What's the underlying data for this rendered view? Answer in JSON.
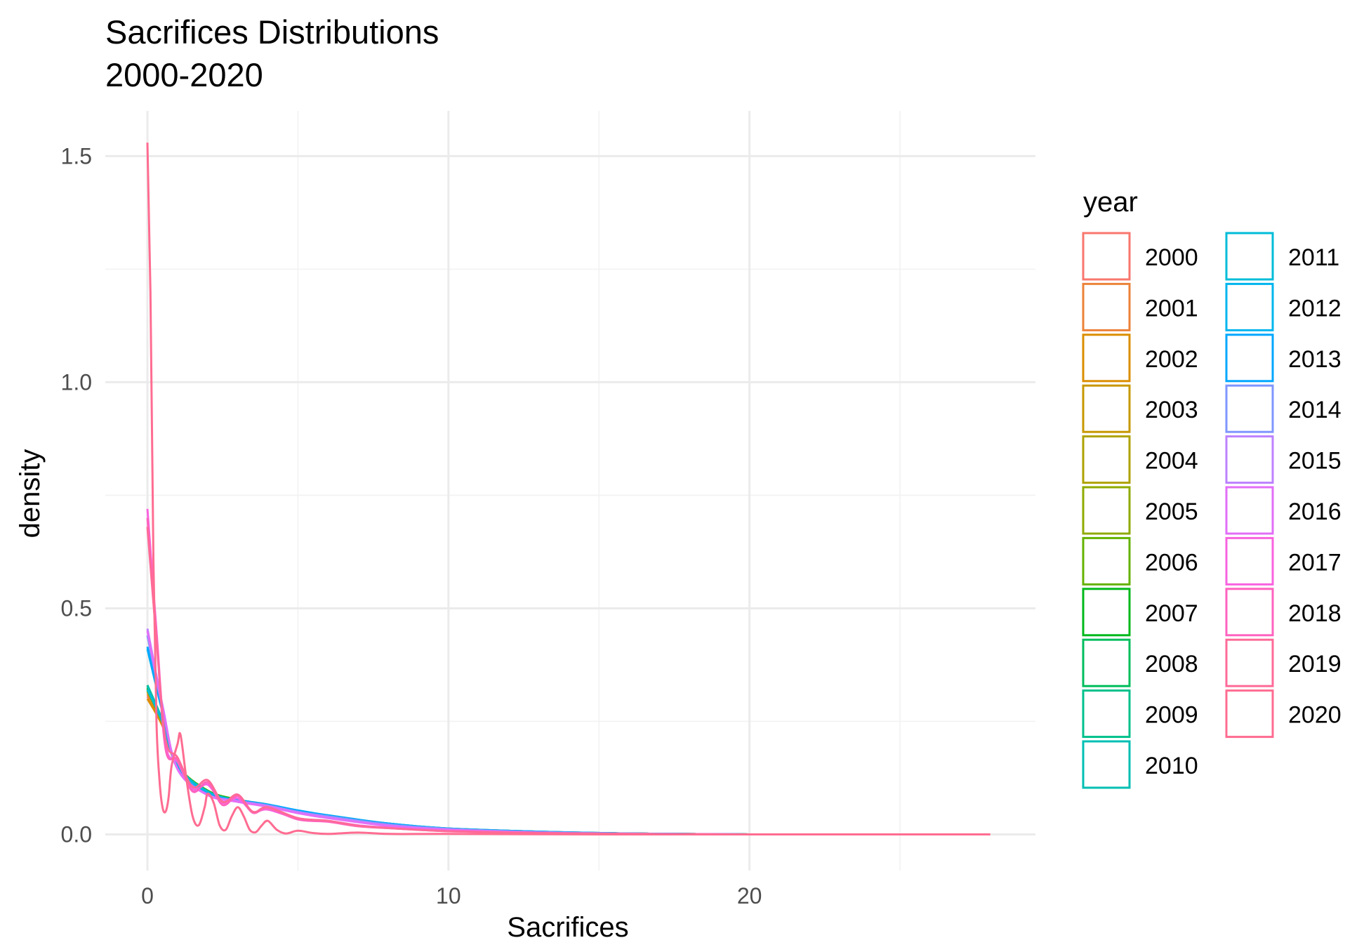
{
  "chart_data": {
    "type": "line",
    "title": "Sacrifices Distributions",
    "subtitle": "2000-2020",
    "xlabel": "Sacrifices",
    "ylabel": "density",
    "xlim": [
      -1.4,
      29.5
    ],
    "ylim": [
      -0.08,
      1.6
    ],
    "x_ticks": [
      0,
      10,
      20
    ],
    "y_ticks": [
      0.0,
      0.5,
      1.0,
      1.5
    ],
    "x_tick_labels": [
      "0",
      "10",
      "20"
    ],
    "y_tick_labels": [
      "0.0",
      "0.5",
      "1.0",
      "1.5"
    ],
    "grid": true,
    "legend": {
      "title": "year",
      "position": "right",
      "columns": 2
    },
    "series": [
      {
        "name": "2000",
        "color": "#F8766D",
        "x": [
          0,
          0.5,
          1,
          2,
          3,
          4,
          5,
          6,
          8,
          10,
          13,
          16,
          20
        ],
        "y": [
          0.305,
          0.24,
          0.15,
          0.095,
          0.075,
          0.065,
          0.05,
          0.04,
          0.022,
          0.012,
          0.005,
          0.002,
          0
        ]
      },
      {
        "name": "2001",
        "color": "#EC8239",
        "x": [
          0,
          0.5,
          1,
          2,
          3,
          4,
          5,
          6,
          8,
          10,
          13,
          16,
          20
        ],
        "y": [
          0.31,
          0.245,
          0.15,
          0.095,
          0.075,
          0.064,
          0.05,
          0.04,
          0.022,
          0.012,
          0.005,
          0.002,
          0
        ]
      },
      {
        "name": "2002",
        "color": "#DB8E00",
        "x": [
          0,
          0.5,
          1,
          2,
          3,
          4,
          5,
          6,
          8,
          10,
          13,
          16,
          20
        ],
        "y": [
          0.3,
          0.24,
          0.15,
          0.095,
          0.076,
          0.065,
          0.051,
          0.041,
          0.023,
          0.013,
          0.006,
          0.002,
          0
        ]
      },
      {
        "name": "2003",
        "color": "#C79800",
        "x": [
          0,
          0.5,
          1,
          2,
          3,
          4,
          5,
          6,
          8,
          10,
          13,
          16,
          20
        ],
        "y": [
          0.315,
          0.245,
          0.152,
          0.095,
          0.075,
          0.064,
          0.05,
          0.04,
          0.022,
          0.012,
          0.005,
          0.002,
          0
        ]
      },
      {
        "name": "2004",
        "color": "#AEA200",
        "x": [
          0,
          0.5,
          1,
          2,
          3,
          4,
          5,
          6,
          8,
          10,
          13,
          16,
          20
        ],
        "y": [
          0.32,
          0.248,
          0.152,
          0.096,
          0.076,
          0.065,
          0.051,
          0.041,
          0.023,
          0.012,
          0.005,
          0.002,
          0
        ]
      },
      {
        "name": "2005",
        "color": "#8FAA00",
        "x": [
          0,
          0.5,
          1,
          2,
          3,
          4,
          5,
          6,
          8,
          10,
          13,
          16,
          20
        ],
        "y": [
          0.318,
          0.246,
          0.151,
          0.095,
          0.075,
          0.064,
          0.05,
          0.04,
          0.022,
          0.012,
          0.005,
          0.002,
          0
        ]
      },
      {
        "name": "2006",
        "color": "#64B200",
        "x": [
          0,
          0.5,
          1,
          2,
          3,
          4,
          5,
          6,
          8,
          10,
          13,
          16,
          20
        ],
        "y": [
          0.322,
          0.25,
          0.153,
          0.097,
          0.077,
          0.066,
          0.052,
          0.042,
          0.024,
          0.013,
          0.006,
          0.002,
          0
        ]
      },
      {
        "name": "2007",
        "color": "#00B81B",
        "x": [
          0,
          0.5,
          1,
          2,
          3,
          4,
          5,
          6,
          8,
          10,
          13,
          16,
          20
        ],
        "y": [
          0.325,
          0.25,
          0.152,
          0.096,
          0.076,
          0.065,
          0.051,
          0.041,
          0.023,
          0.012,
          0.005,
          0.002,
          0
        ]
      },
      {
        "name": "2008",
        "color": "#00BD5C",
        "x": [
          0,
          0.5,
          1,
          2,
          3,
          4,
          5,
          6,
          8,
          10,
          13,
          16,
          20
        ],
        "y": [
          0.32,
          0.248,
          0.151,
          0.095,
          0.075,
          0.064,
          0.05,
          0.04,
          0.022,
          0.012,
          0.005,
          0.002,
          0
        ]
      },
      {
        "name": "2009",
        "color": "#00C08B",
        "x": [
          0,
          0.5,
          1,
          2,
          3,
          4,
          5,
          6,
          8,
          10,
          13,
          16,
          20
        ],
        "y": [
          0.33,
          0.252,
          0.152,
          0.095,
          0.075,
          0.064,
          0.05,
          0.04,
          0.022,
          0.012,
          0.005,
          0.002,
          0
        ]
      },
      {
        "name": "2010",
        "color": "#00BFB3",
        "x": [
          0,
          0.5,
          1,
          2,
          3,
          4,
          5,
          6,
          8,
          10,
          13,
          16,
          20
        ],
        "y": [
          0.328,
          0.25,
          0.151,
          0.095,
          0.074,
          0.063,
          0.049,
          0.039,
          0.021,
          0.011,
          0.005,
          0.002,
          0
        ]
      },
      {
        "name": "2011",
        "color": "#00BCD8",
        "x": [
          0,
          0.5,
          1,
          2,
          3,
          4,
          5,
          6,
          8,
          10,
          13,
          16,
          20
        ],
        "y": [
          0.32,
          0.248,
          0.15,
          0.094,
          0.074,
          0.063,
          0.049,
          0.039,
          0.021,
          0.011,
          0.005,
          0.002,
          0
        ]
      },
      {
        "name": "2012",
        "color": "#00B5EE",
        "x": [
          0,
          0.5,
          1,
          2,
          3,
          4,
          5,
          6,
          8,
          10,
          13,
          16,
          20
        ],
        "y": [
          0.41,
          0.27,
          0.145,
          0.09,
          0.075,
          0.065,
          0.052,
          0.042,
          0.024,
          0.013,
          0.006,
          0.002,
          0
        ]
      },
      {
        "name": "2013",
        "color": "#00A7FF",
        "x": [
          0,
          0.5,
          1,
          2,
          3,
          4,
          5,
          6,
          8,
          10,
          13,
          16,
          20
        ],
        "y": [
          0.415,
          0.272,
          0.146,
          0.09,
          0.076,
          0.066,
          0.053,
          0.042,
          0.024,
          0.013,
          0.006,
          0.002,
          0
        ]
      },
      {
        "name": "2014",
        "color": "#7F96FF",
        "x": [
          0,
          0.5,
          1,
          2,
          3,
          4,
          5,
          6,
          8,
          10,
          13,
          16,
          20
        ],
        "y": [
          0.44,
          0.28,
          0.145,
          0.088,
          0.074,
          0.064,
          0.05,
          0.04,
          0.022,
          0.012,
          0.005,
          0.002,
          0
        ]
      },
      {
        "name": "2015",
        "color": "#BC81FF",
        "x": [
          0,
          0.5,
          1,
          2,
          3,
          4,
          5,
          6,
          8,
          10,
          13,
          16,
          20
        ],
        "y": [
          0.455,
          0.285,
          0.145,
          0.088,
          0.074,
          0.063,
          0.049,
          0.038,
          0.02,
          0.011,
          0.004,
          0.001,
          0
        ]
      },
      {
        "name": "2016",
        "color": "#E26EF7",
        "x": [
          0,
          0.5,
          1,
          2,
          3,
          4,
          5,
          6,
          8,
          10,
          13,
          16,
          20
        ],
        "y": [
          0.45,
          0.282,
          0.144,
          0.087,
          0.072,
          0.061,
          0.047,
          0.036,
          0.019,
          0.01,
          0.004,
          0.001,
          0
        ]
      },
      {
        "name": "2017",
        "color": "#F863DF",
        "x": [
          0,
          0.3,
          0.6,
          1,
          1.5,
          2,
          2.5,
          3,
          3.5,
          4,
          5,
          6,
          7,
          8,
          10,
          13,
          16,
          20
        ],
        "y": [
          0.72,
          0.45,
          0.2,
          0.16,
          0.1,
          0.11,
          0.07,
          0.08,
          0.05,
          0.055,
          0.035,
          0.03,
          0.02,
          0.015,
          0.008,
          0.003,
          0.001,
          0
        ]
      },
      {
        "name": "2018",
        "color": "#FF62BF",
        "x": [
          0,
          0.3,
          0.6,
          1,
          1.5,
          2,
          2.5,
          3,
          3.5,
          4,
          5,
          6,
          7,
          8,
          10,
          13,
          16,
          20
        ],
        "y": [
          0.7,
          0.44,
          0.19,
          0.165,
          0.095,
          0.115,
          0.065,
          0.085,
          0.048,
          0.058,
          0.033,
          0.028,
          0.018,
          0.014,
          0.007,
          0.003,
          0.001,
          0
        ]
      },
      {
        "name": "2019",
        "color": "#FF6A98",
        "x": [
          0,
          0.3,
          0.6,
          1,
          1.5,
          2,
          2.5,
          3,
          3.5,
          4,
          5,
          6,
          7,
          8,
          10,
          13,
          16,
          20
        ],
        "y": [
          0.68,
          0.43,
          0.21,
          0.17,
          0.105,
          0.12,
          0.072,
          0.088,
          0.05,
          0.06,
          0.036,
          0.03,
          0.019,
          0.014,
          0.007,
          0.003,
          0.001,
          0
        ]
      },
      {
        "name": "2020",
        "color": "#FF6C91",
        "x": [
          0,
          0.1,
          0.2,
          0.3,
          0.4,
          0.5,
          0.6,
          0.7,
          0.8,
          1.0,
          1.1,
          1.3,
          1.5,
          1.7,
          1.9,
          2.0,
          2.2,
          2.4,
          2.6,
          2.8,
          3.0,
          3.2,
          3.4,
          3.6,
          3.8,
          4.0,
          4.3,
          4.6,
          5.0,
          5.5,
          6,
          7,
          8,
          10,
          15,
          20,
          28
        ],
        "y": [
          1.53,
          1.2,
          0.6,
          0.25,
          0.12,
          0.06,
          0.05,
          0.08,
          0.15,
          0.2,
          0.22,
          0.12,
          0.04,
          0.02,
          0.06,
          0.09,
          0.07,
          0.02,
          0.01,
          0.04,
          0.06,
          0.04,
          0.01,
          0.005,
          0.02,
          0.03,
          0.01,
          0.002,
          0.008,
          0.003,
          0.001,
          0.004,
          0.001,
          0.001,
          0,
          0,
          0
        ]
      }
    ]
  }
}
